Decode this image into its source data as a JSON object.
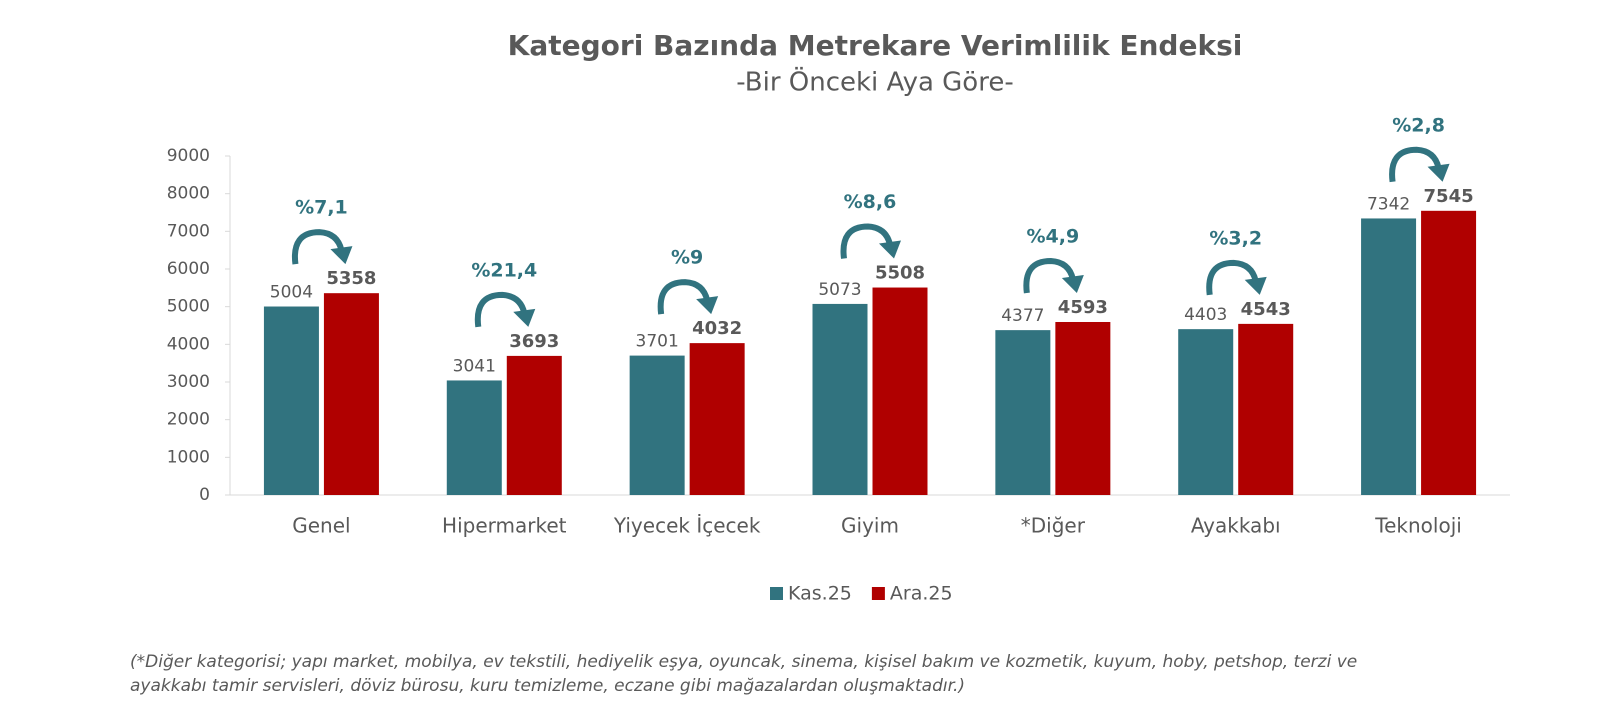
{
  "chart_data": {
    "type": "bar",
    "title": "Kategori Bazında Metrekare Verimlilik Endeksi",
    "subtitle": "-Bir Önceki Aya Göre-",
    "categories": [
      "Genel",
      "Hipermarket",
      "Yiyecek İçecek",
      "Giyim",
      "*Diğer",
      "Ayakkabı",
      "Teknoloji"
    ],
    "series": [
      {
        "name": "Kas.25",
        "color": "#31737f",
        "values": [
          5004,
          3041,
          3701,
          5073,
          4377,
          4403,
          7342
        ]
      },
      {
        "name": "Ara.25",
        "color": "#b00000",
        "values": [
          5358,
          3693,
          4032,
          5508,
          4593,
          4543,
          7545
        ]
      }
    ],
    "annotations": [
      "%7,1",
      "%21,4",
      "%9",
      "%8,6",
      "%4,9",
      "%3,2",
      "%2,8"
    ],
    "ylim": [
      0,
      9000
    ],
    "yticks": [
      0,
      1000,
      2000,
      3000,
      4000,
      5000,
      6000,
      7000,
      8000,
      9000
    ],
    "grid": false,
    "legend": "bottom",
    "footnote": [
      "(*Diğer kategorisi; yapı market, mobilya, ev tekstili, hediyelik eşya, oyuncak, sinema, kişisel bakım ve kozmetik, kuyum, hoby, petshop, terzi ve",
      "ayakkabı tamir servisleri, döviz bürosu, kuru temizleme, eczane gibi mağazalardan oluşmaktadır.)"
    ]
  }
}
